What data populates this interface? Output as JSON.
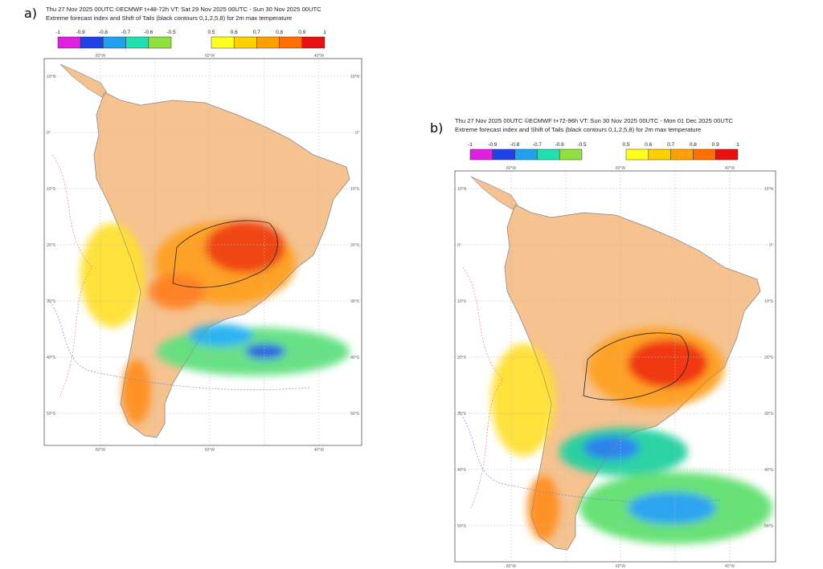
{
  "panels": [
    {
      "label": "a)",
      "header": [
        "Thu 27 Nov 2025 00UTC ©ECMWF t+48-72h  VT: Sat 29 Nov 2025 00UTC - Sun 30 Nov 2025 00UTC",
        "Extreme forecast index and Shift of Tails (black contours 0,1,2,5,8) for 2m max temperature"
      ],
      "legend": {
        "negative": [
          -1,
          -0.9,
          -0.8,
          -0.7,
          -0.6,
          -0.5
        ],
        "positive": [
          0.5,
          0.6,
          0.7,
          0.8,
          0.9,
          1
        ]
      }
    },
    {
      "label": "b)",
      "header": [
        "Thu 27 Nov 2025 00UTC ©ECMWF t+72-96h  VT: Sun 30 Nov 2025 00UTC - Mon 01 Dec 2025 00UTC",
        "Extreme forecast index and Shift of Tails (black contours 0,1,2,5,8) for 2m max temperature"
      ],
      "legend": {
        "negative": [
          -1,
          -0.9,
          -0.8,
          -0.7,
          -0.6,
          -0.5
        ],
        "positive": [
          0.5,
          0.6,
          0.7,
          0.8,
          0.9,
          1
        ]
      }
    }
  ],
  "legend_colors": {
    "negative": [
      "#e020e0",
      "#2040e8",
      "#20a0f0",
      "#20e0b0",
      "#90e040"
    ],
    "positive": [
      "#ffff20",
      "#ffd000",
      "#ffa000",
      "#ff7000",
      "#e81010"
    ]
  },
  "map_labels": {
    "lat": [
      "10°N",
      "0°",
      "10°S",
      "20°S",
      "30°S",
      "40°S",
      "50°S"
    ],
    "lon": [
      "80°W",
      "60°W",
      "40°W"
    ]
  }
}
